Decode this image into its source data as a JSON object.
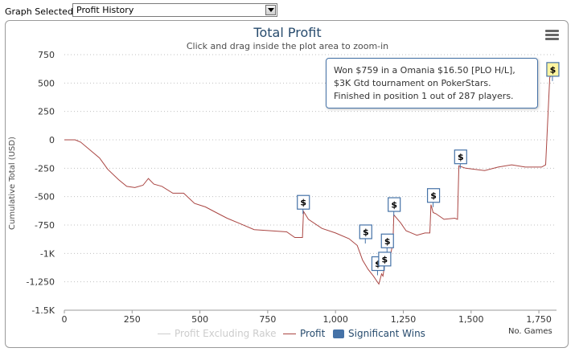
{
  "toolbar": {
    "graph_label": "Graph Selected:",
    "selected_graph": "Profit History"
  },
  "menu": {
    "icon": "hamburger-menu-icon"
  },
  "tooltip": {
    "line1": "Won $759 in a Omania $16.50 [PLO H/L],",
    "line2": "$3K Gtd tournament on PokerStars.",
    "line3": "Finished in position 1 out of 287 players."
  },
  "colors": {
    "title": "#274b6d",
    "profit_line": "#aa4643",
    "profit_ex_rake": "#cccccc",
    "flag": "#4572a7",
    "grid": "#c0c0c0",
    "flag_highlight": "#fff5a0"
  },
  "chart_data": {
    "type": "line",
    "title": "Total Profit",
    "subtitle": "Click and drag inside the plot area to zoom-in",
    "ylabel": "Cumulative Total (USD)",
    "xlabel": "No. Games",
    "xlim": [
      0,
      1815
    ],
    "ylim": [
      -1500,
      750
    ],
    "x_ticks": [
      0,
      250,
      500,
      750,
      1000,
      1250,
      1500,
      1750
    ],
    "x_tick_labels": [
      "0",
      "250",
      "500",
      "750",
      "1,000",
      "1,250",
      "1,500",
      "1,750"
    ],
    "y_ticks": [
      750,
      500,
      250,
      0,
      -250,
      -500,
      -750,
      -1000,
      -1250,
      -1500
    ],
    "y_tick_labels": [
      "750",
      "500",
      "250",
      "0",
      "-250",
      "-500",
      "-750",
      "-1K",
      "-1,250",
      "-1.5K"
    ],
    "legend": [
      {
        "name": "Profit Excluding Rake",
        "visible": false
      },
      {
        "name": "Profit",
        "visible": true
      },
      {
        "name": "Significant Wins",
        "visible": true
      }
    ],
    "series": [
      {
        "name": "Profit",
        "points": [
          [
            0,
            0
          ],
          [
            40,
            0
          ],
          [
            60,
            -20
          ],
          [
            100,
            -100
          ],
          [
            130,
            -160
          ],
          [
            160,
            -260
          ],
          [
            200,
            -350
          ],
          [
            230,
            -410
          ],
          [
            260,
            -420
          ],
          [
            290,
            -400
          ],
          [
            310,
            -340
          ],
          [
            330,
            -390
          ],
          [
            360,
            -410
          ],
          [
            400,
            -470
          ],
          [
            440,
            -470
          ],
          [
            480,
            -560
          ],
          [
            520,
            -590
          ],
          [
            560,
            -640
          ],
          [
            600,
            -690
          ],
          [
            650,
            -740
          ],
          [
            700,
            -790
          ],
          [
            760,
            -800
          ],
          [
            820,
            -810
          ],
          [
            850,
            -860
          ],
          [
            878,
            -860
          ],
          [
            882,
            -630
          ],
          [
            900,
            -700
          ],
          [
            950,
            -780
          ],
          [
            1000,
            -820
          ],
          [
            1050,
            -870
          ],
          [
            1080,
            -930
          ],
          [
            1100,
            -1060
          ],
          [
            1120,
            -1140
          ],
          [
            1140,
            -1200
          ],
          [
            1160,
            -1270
          ],
          [
            1170,
            -1180
          ],
          [
            1175,
            -1200
          ],
          [
            1185,
            -1040
          ],
          [
            1195,
            -1100
          ],
          [
            1205,
            -990
          ],
          [
            1212,
            -900
          ],
          [
            1215,
            -660
          ],
          [
            1240,
            -730
          ],
          [
            1260,
            -800
          ],
          [
            1300,
            -840
          ],
          [
            1330,
            -820
          ],
          [
            1348,
            -820
          ],
          [
            1352,
            -570
          ],
          [
            1360,
            -640
          ],
          [
            1370,
            -650
          ],
          [
            1400,
            -700
          ],
          [
            1440,
            -690
          ],
          [
            1450,
            -700
          ],
          [
            1455,
            -230
          ],
          [
            1480,
            -250
          ],
          [
            1550,
            -270
          ],
          [
            1600,
            -240
          ],
          [
            1650,
            -220
          ],
          [
            1700,
            -240
          ],
          [
            1740,
            -240
          ],
          [
            1760,
            -240
          ],
          [
            1775,
            -220
          ],
          [
            1790,
            550
          ],
          [
            1800,
            580
          ]
        ]
      }
    ],
    "significant_wins": [
      {
        "game": 880,
        "value": -610,
        "label": "$"
      },
      {
        "game": 1110,
        "value": -870,
        "label": "$"
      },
      {
        "game": 1155,
        "value": -1150,
        "label": "$"
      },
      {
        "game": 1180,
        "value": -1110,
        "label": "$"
      },
      {
        "game": 1190,
        "value": -950,
        "label": "$"
      },
      {
        "game": 1215,
        "value": -630,
        "label": "$"
      },
      {
        "game": 1360,
        "value": -550,
        "label": "$"
      },
      {
        "game": 1460,
        "value": -210,
        "label": "$"
      },
      {
        "game": 1800,
        "value": 560,
        "label": "$",
        "highlight": true
      }
    ]
  }
}
